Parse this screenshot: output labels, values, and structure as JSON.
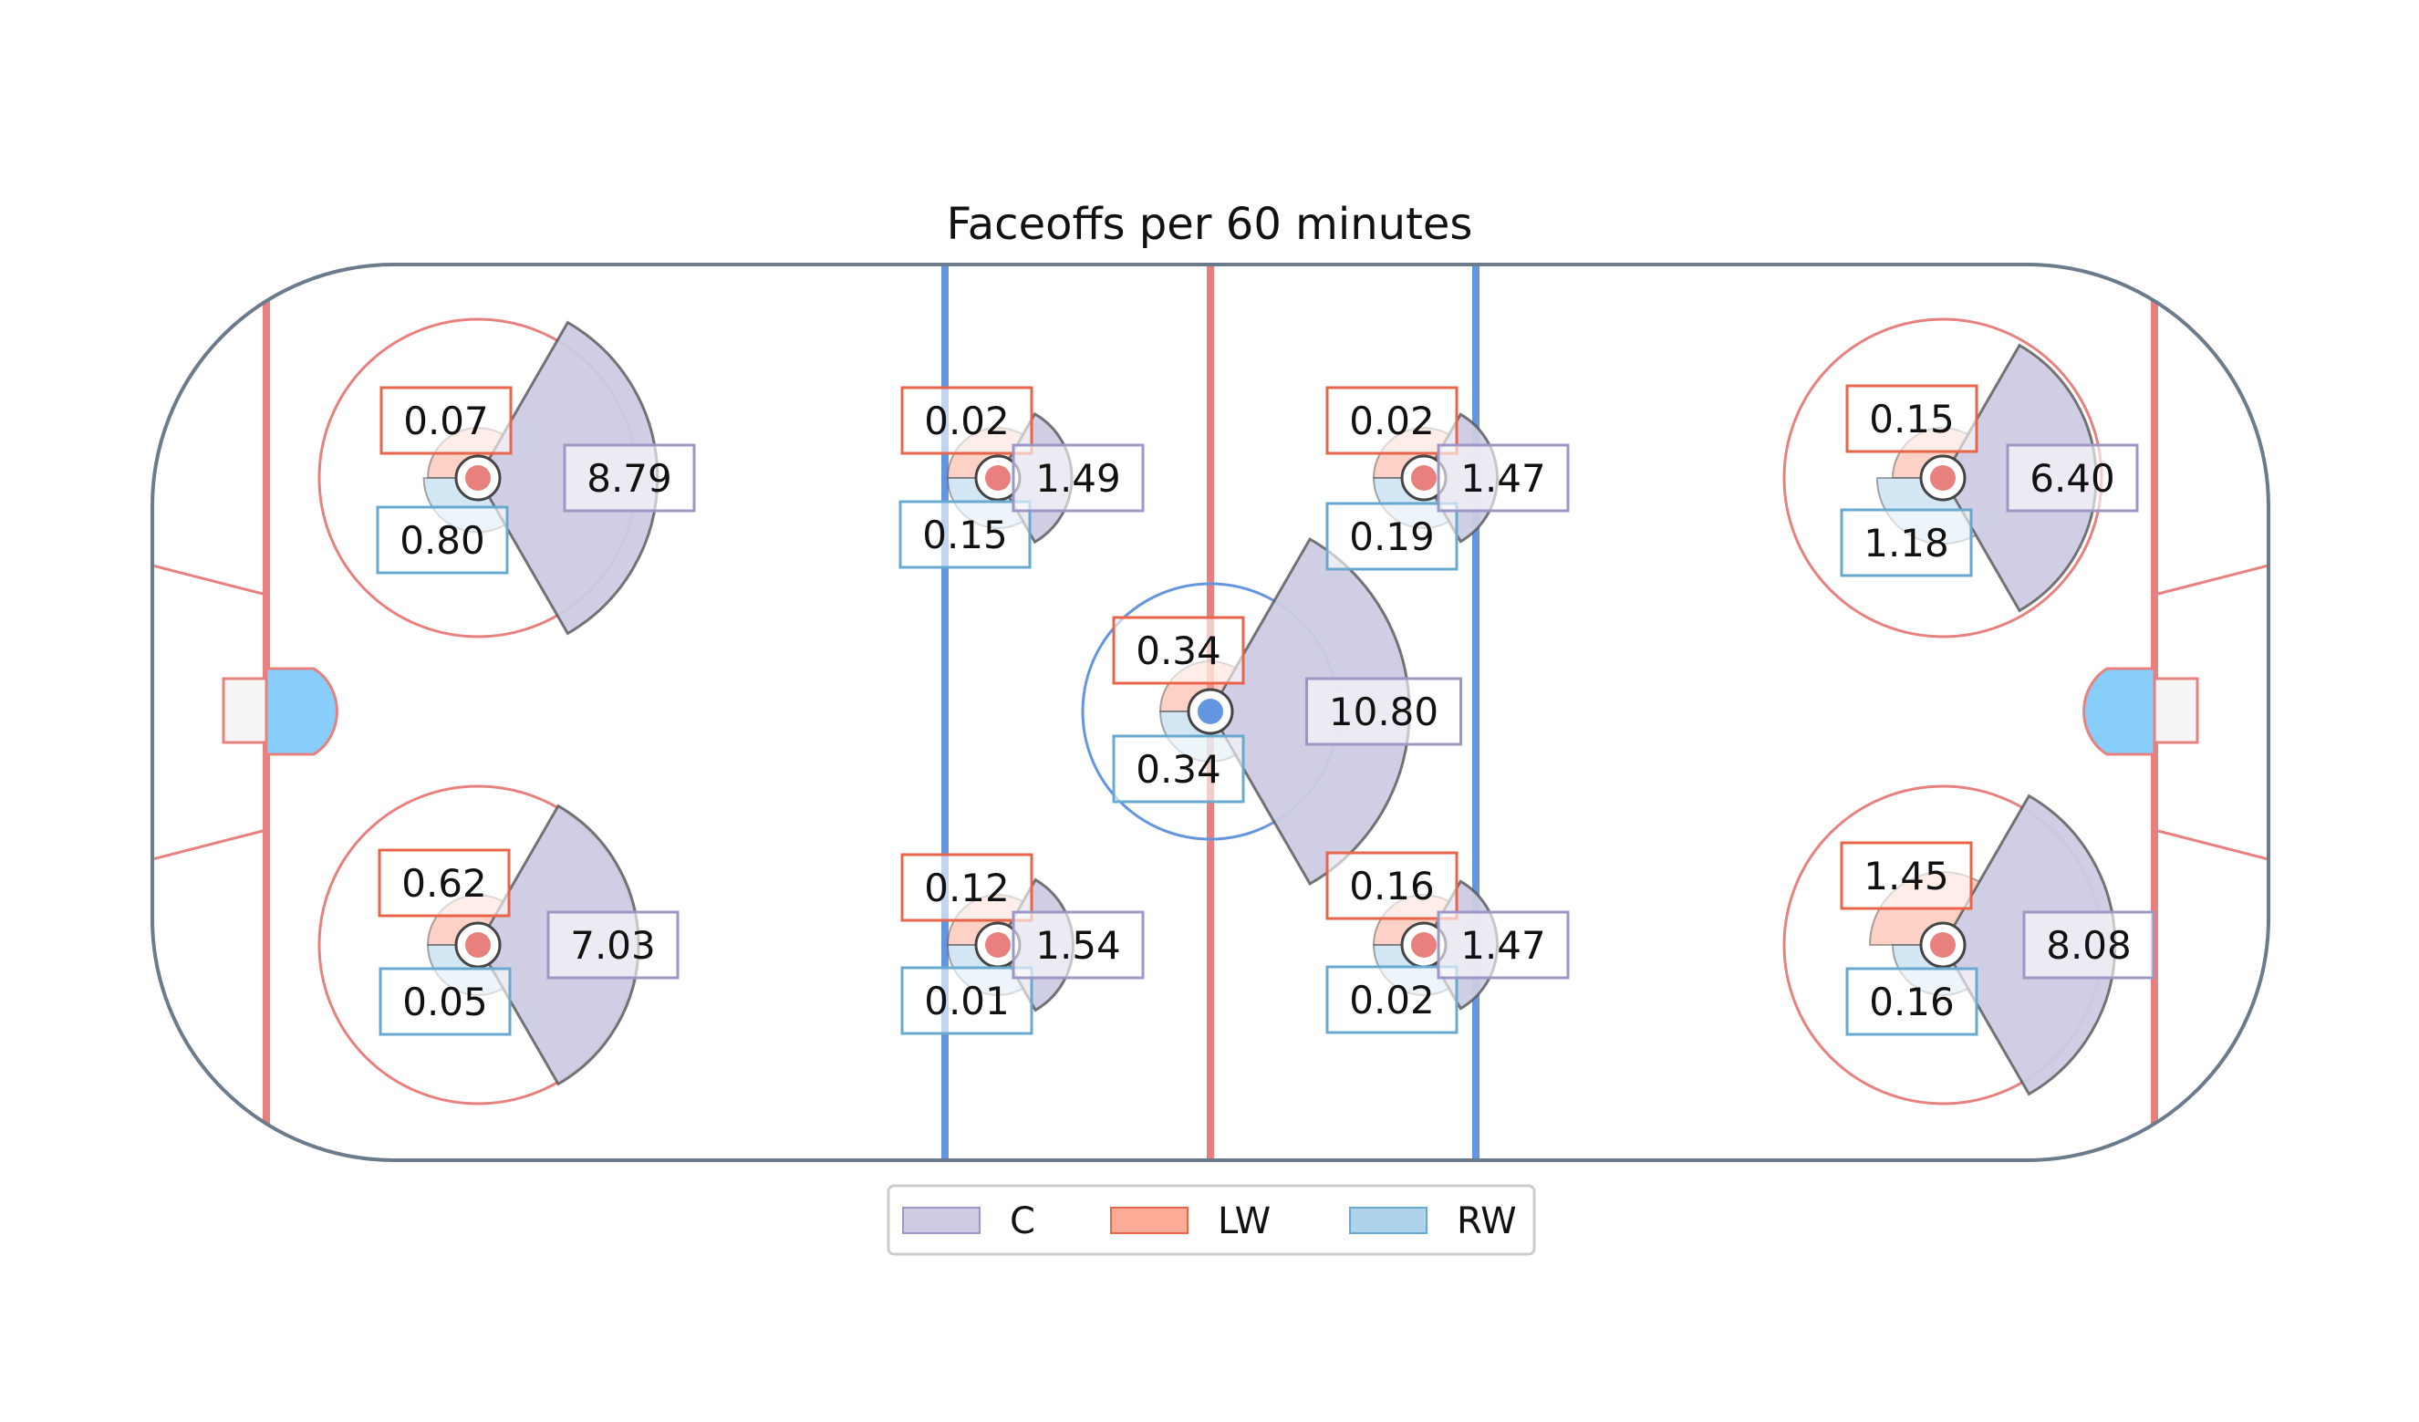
{
  "chart_data": {
    "type": "polar-wedge-rink",
    "title": "Faceoffs per 60 minutes",
    "series": [
      {
        "name": "C",
        "color": "#cccbe3",
        "edge": "#9d97c8"
      },
      {
        "name": "LW",
        "color": "#fcab96",
        "edge": "#e8654a"
      },
      {
        "name": "RW",
        "color": "#aed2ea",
        "edge": "#68a9cf"
      }
    ],
    "spots": [
      {
        "id": "left-offensive-top",
        "C": "8.79",
        "LW": "0.07",
        "RW": "0.80"
      },
      {
        "id": "left-offensive-bottom",
        "C": "7.03",
        "LW": "0.62",
        "RW": "0.05"
      },
      {
        "id": "left-neutral-top",
        "C": "1.49",
        "LW": "0.02",
        "RW": "0.15"
      },
      {
        "id": "left-neutral-bottom",
        "C": "1.54",
        "LW": "0.12",
        "RW": "0.01"
      },
      {
        "id": "center-ice",
        "C": "10.80",
        "LW": "0.34",
        "RW": "0.34"
      },
      {
        "id": "right-neutral-top",
        "C": "1.47",
        "LW": "0.02",
        "RW": "0.19"
      },
      {
        "id": "right-neutral-bottom",
        "C": "1.47",
        "LW": "0.16",
        "RW": "0.02"
      },
      {
        "id": "right-offensive-top",
        "C": "6.40",
        "LW": "0.15",
        "RW": "1.18"
      },
      {
        "id": "right-offensive-bottom",
        "C": "8.08",
        "LW": "1.45",
        "RW": "0.16"
      }
    ],
    "legend": {
      "placement": "bottom-center",
      "labels": [
        "C",
        "LW",
        "RW"
      ]
    }
  },
  "colors": {
    "board": "#6b7b8c",
    "red_line": "#e8807e",
    "blue_line": "#6495e0",
    "crease": "#87cefa",
    "net": "#f5f5f5"
  }
}
